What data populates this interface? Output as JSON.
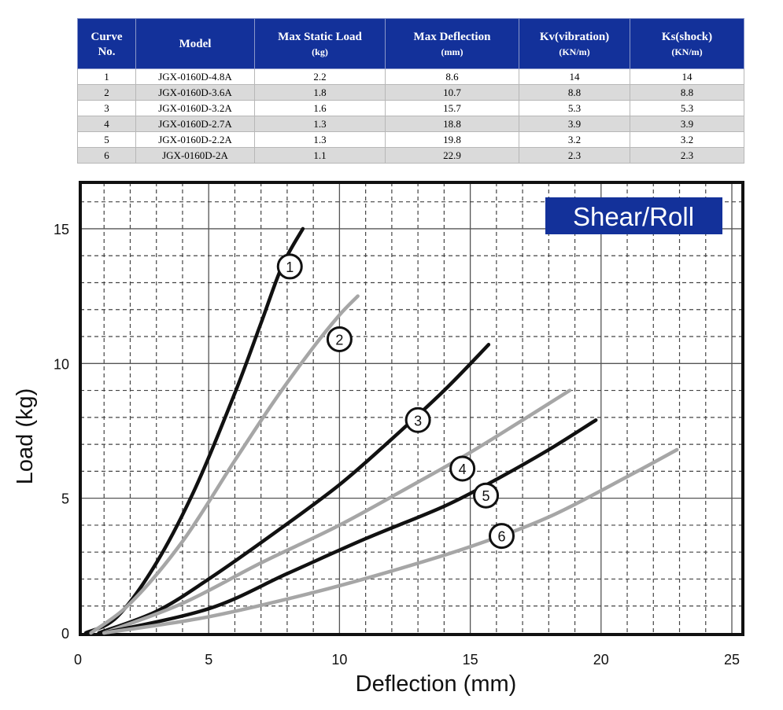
{
  "table": {
    "headers": [
      {
        "label": "Curve",
        "sub": "No."
      },
      {
        "label": "Model",
        "sub": ""
      },
      {
        "label": "Max Static Load",
        "sub": "(kg)"
      },
      {
        "label": "Max Deflection",
        "sub": "(mm)"
      },
      {
        "label": "Kv(vibration)",
        "sub": "(KN/m)"
      },
      {
        "label": "Ks(shock)",
        "sub": "(KN/m)"
      }
    ],
    "rows": [
      [
        "1",
        "JGX-0160D-4.8A",
        "2.2",
        "8.6",
        "14",
        "14"
      ],
      [
        "2",
        "JGX-0160D-3.6A",
        "1.8",
        "10.7",
        "8.8",
        "8.8"
      ],
      [
        "3",
        "JGX-0160D-3.2A",
        "1.6",
        "15.7",
        "5.3",
        "5.3"
      ],
      [
        "4",
        "JGX-0160D-2.7A",
        "1.3",
        "18.8",
        "3.9",
        "3.9"
      ],
      [
        "5",
        "JGX-0160D-2.2A",
        "1.3",
        "19.8",
        "3.2",
        "3.2"
      ],
      [
        "6",
        "JGX-0160D-2A",
        "1.1",
        "22.9",
        "2.3",
        "2.3"
      ]
    ]
  },
  "colors": {
    "header_bg": "#13319a",
    "badge_bg": "#13319a",
    "dark_curve": "#111111",
    "light_curve": "#a6a6a6"
  },
  "chart_data": {
    "type": "line",
    "badge": "Shear/Roll",
    "xlabel": "Deflection (mm)",
    "ylabel": "Load (kg)",
    "xlim": [
      0,
      25.3
    ],
    "ylim": [
      0,
      16.8
    ],
    "xticks": [
      "0",
      "5",
      "10",
      "15",
      "20",
      "25"
    ],
    "yticks": [
      "0",
      "5",
      "10",
      "15"
    ],
    "grid": true,
    "series": [
      {
        "name": "1",
        "color": "dark",
        "x": [
          0.3,
          1.5,
          3.0,
          4.5,
          6.0,
          7.0,
          7.8,
          8.6
        ],
        "y": [
          0,
          0.6,
          2.6,
          5.4,
          8.9,
          11.5,
          13.6,
          15.0
        ],
        "label_at": [
          8.1,
          13.6
        ]
      },
      {
        "name": "2",
        "color": "light",
        "x": [
          0.5,
          2.0,
          4.0,
          6.0,
          7.5,
          9.0,
          10.0,
          10.7
        ],
        "y": [
          0,
          1.1,
          3.4,
          6.4,
          8.6,
          10.6,
          11.8,
          12.5
        ],
        "label_at": [
          10.0,
          10.9
        ]
      },
      {
        "name": "3",
        "color": "dark",
        "x": [
          0.8,
          3.0,
          5.0,
          7.5,
          10.0,
          12.0,
          14.0,
          15.7
        ],
        "y": [
          0,
          0.8,
          2.0,
          3.7,
          5.5,
          7.2,
          9.0,
          10.7
        ],
        "label_at": [
          13.0,
          7.9
        ]
      },
      {
        "name": "4",
        "color": "light",
        "x": [
          1.0,
          4.0,
          7.0,
          10.0,
          13.0,
          15.0,
          17.0,
          18.8
        ],
        "y": [
          0,
          1.1,
          2.6,
          4.0,
          5.6,
          6.7,
          7.9,
          9.0
        ],
        "label_at": [
          14.7,
          6.1
        ]
      },
      {
        "name": "5",
        "color": "dark",
        "x": [
          1.0,
          5.0,
          8.0,
          11.0,
          14.0,
          16.0,
          18.0,
          19.8
        ],
        "y": [
          0,
          0.9,
          2.2,
          3.5,
          4.7,
          5.7,
          6.8,
          7.9
        ],
        "label_at": [
          15.6,
          5.1
        ]
      },
      {
        "name": "6",
        "color": "light",
        "x": [
          1.0,
          5.0,
          9.0,
          12.0,
          15.0,
          18.0,
          21.0,
          22.9
        ],
        "y": [
          0,
          0.6,
          1.5,
          2.3,
          3.2,
          4.3,
          5.8,
          6.8
        ],
        "label_at": [
          16.2,
          3.6
        ]
      }
    ]
  }
}
